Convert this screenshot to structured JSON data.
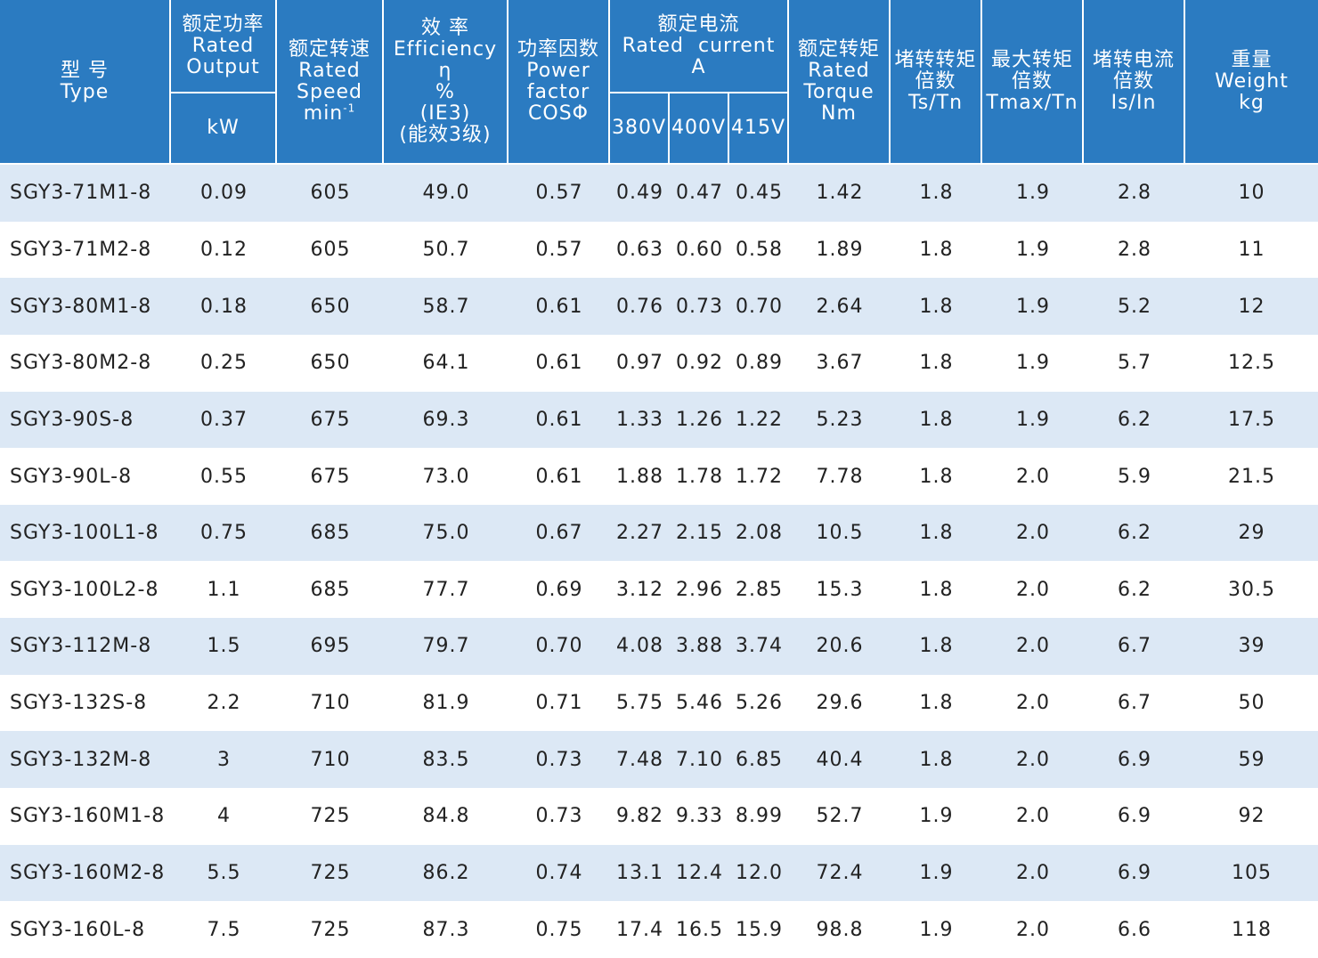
{
  "header": {
    "columns": [
      {
        "lines": [
          "型 号",
          "Type"
        ]
      },
      {
        "lines": [
          "额定功率",
          "Rated",
          "Output"
        ],
        "sub": [
          "kW"
        ]
      },
      {
        "lines": [
          "额定转速",
          "Rated",
          "Speed",
          {
            "text": "min",
            "sup": "-1"
          }
        ]
      },
      {
        "lines": [
          "效 率",
          "Efficiency",
          "η",
          "%",
          "(IE3)",
          "(能效3级)"
        ]
      },
      {
        "lines": [
          "功率因数",
          "Power",
          "factor",
          "COSΦ"
        ]
      },
      {
        "lines": [
          "额定电流",
          "Rated  current",
          "A"
        ],
        "sub": [
          "380V",
          "400V",
          "415V"
        ]
      },
      {
        "lines": [
          "额定转矩",
          "Rated",
          "Torque",
          "Nm"
        ]
      },
      {
        "lines": [
          "堵转转矩",
          "倍数",
          "Ts/Tn"
        ]
      },
      {
        "lines": [
          "最大转矩",
          "倍数",
          "Tmax/Tn"
        ]
      },
      {
        "lines": [
          "堵转电流",
          "倍数",
          "Is/In"
        ]
      },
      {
        "lines": [
          "重量",
          "Weight",
          "kg"
        ]
      }
    ]
  },
  "table": {
    "rows": [
      [
        "SGY3-71M1-8",
        "0.09",
        "605",
        "49.0",
        "0.57",
        "0.49",
        "0.47",
        "0.45",
        "1.42",
        "1.8",
        "1.9",
        "2.8",
        "10"
      ],
      [
        "SGY3-71M2-8",
        "0.12",
        "605",
        "50.7",
        "0.57",
        "0.63",
        "0.60",
        "0.58",
        "1.89",
        "1.8",
        "1.9",
        "2.8",
        "11"
      ],
      [
        "SGY3-80M1-8",
        "0.18",
        "650",
        "58.7",
        "0.61",
        "0.76",
        "0.73",
        "0.70",
        "2.64",
        "1.8",
        "1.9",
        "5.2",
        "12"
      ],
      [
        "SGY3-80M2-8",
        "0.25",
        "650",
        "64.1",
        "0.61",
        "0.97",
        "0.92",
        "0.89",
        "3.67",
        "1.8",
        "1.9",
        "5.7",
        "12.5"
      ],
      [
        "SGY3-90S-8",
        "0.37",
        "675",
        "69.3",
        "0.61",
        "1.33",
        "1.26",
        "1.22",
        "5.23",
        "1.8",
        "1.9",
        "6.2",
        "17.5"
      ],
      [
        "SGY3-90L-8",
        "0.55",
        "675",
        "73.0",
        "0.61",
        "1.88",
        "1.78",
        "1.72",
        "7.78",
        "1.8",
        "2.0",
        "5.9",
        "21.5"
      ],
      [
        "SGY3-100L1-8",
        "0.75",
        "685",
        "75.0",
        "0.67",
        "2.27",
        "2.15",
        "2.08",
        "10.5",
        "1.8",
        "2.0",
        "6.2",
        "29"
      ],
      [
        "SGY3-100L2-8",
        "1.1",
        "685",
        "77.7",
        "0.69",
        "3.12",
        "2.96",
        "2.85",
        "15.3",
        "1.8",
        "2.0",
        "6.2",
        "30.5"
      ],
      [
        "SGY3-112M-8",
        "1.5",
        "695",
        "79.7",
        "0.70",
        "4.08",
        "3.88",
        "3.74",
        "20.6",
        "1.8",
        "2.0",
        "6.7",
        "39"
      ],
      [
        "SGY3-132S-8",
        "2.2",
        "710",
        "81.9",
        "0.71",
        "5.75",
        "5.46",
        "5.26",
        "29.6",
        "1.8",
        "2.0",
        "6.7",
        "50"
      ],
      [
        "SGY3-132M-8",
        "3",
        "710",
        "83.5",
        "0.73",
        "7.48",
        "7.10",
        "6.85",
        "40.4",
        "1.8",
        "2.0",
        "6.9",
        "59"
      ],
      [
        "SGY3-160M1-8",
        "4",
        "725",
        "84.8",
        "0.73",
        "9.82",
        "9.33",
        "8.99",
        "52.7",
        "1.9",
        "2.0",
        "6.9",
        "92"
      ],
      [
        "SGY3-160M2-8",
        "5.5",
        "725",
        "86.2",
        "0.74",
        "13.1",
        "12.4",
        "12.0",
        "72.4",
        "1.9",
        "2.0",
        "6.9",
        "105"
      ],
      [
        "SGY3-160L-8",
        "7.5",
        "725",
        "87.3",
        "0.75",
        "17.4",
        "16.5",
        "15.9",
        "98.8",
        "1.9",
        "2.0",
        "6.6",
        "118"
      ]
    ]
  }
}
